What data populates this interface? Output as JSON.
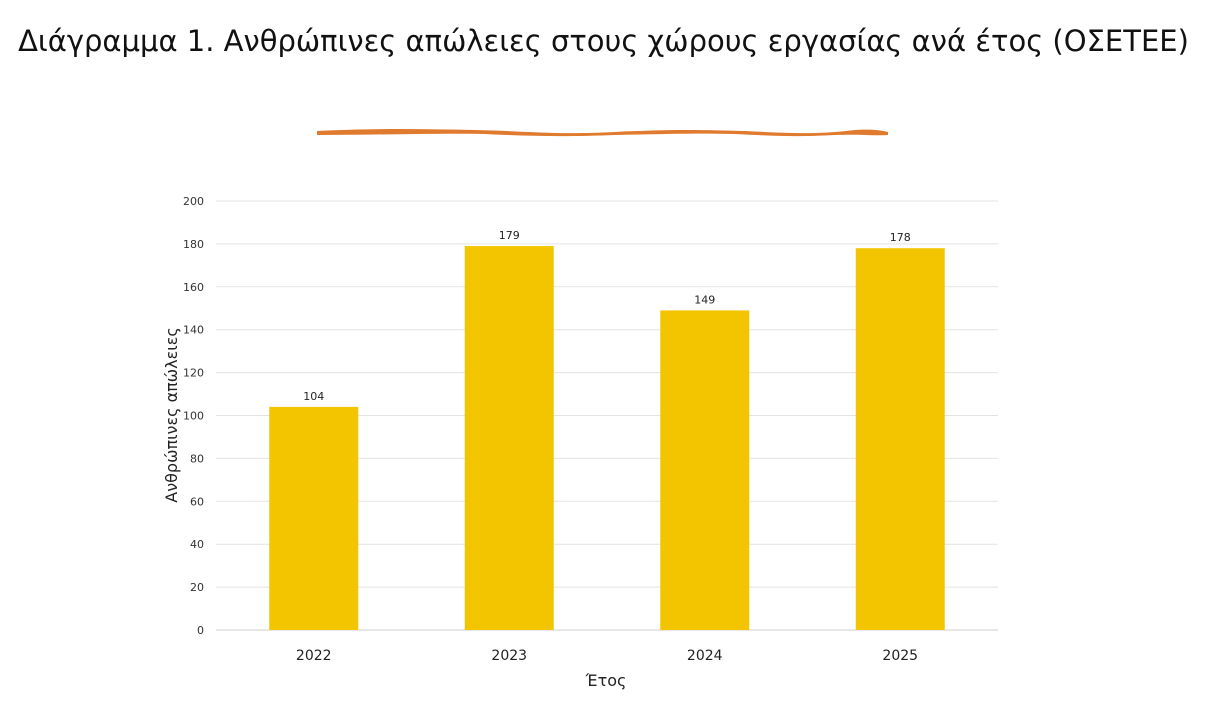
{
  "page": {
    "title": "Διάγραμμα 1. Ανθρώπινες απώλειες στους χώρους εργασίας ανά έτος (ΟΣΕΤΕΕ)",
    "accent_color": "#e07a2e"
  },
  "chart_data": {
    "type": "bar",
    "categories": [
      "2022",
      "2023",
      "2024",
      "2025"
    ],
    "values": [
      104,
      179,
      149,
      178
    ],
    "data_labels": [
      "104",
      "179",
      "149",
      "178"
    ],
    "xlabel": "Έτος",
    "ylabel": "Ανθρώπινες απώλειες",
    "ylim": [
      0,
      200
    ],
    "yticks": [
      0,
      20,
      40,
      60,
      80,
      100,
      120,
      140,
      160,
      180,
      200
    ],
    "grid": true,
    "legend": "none",
    "bar_color": "#f2c500"
  }
}
